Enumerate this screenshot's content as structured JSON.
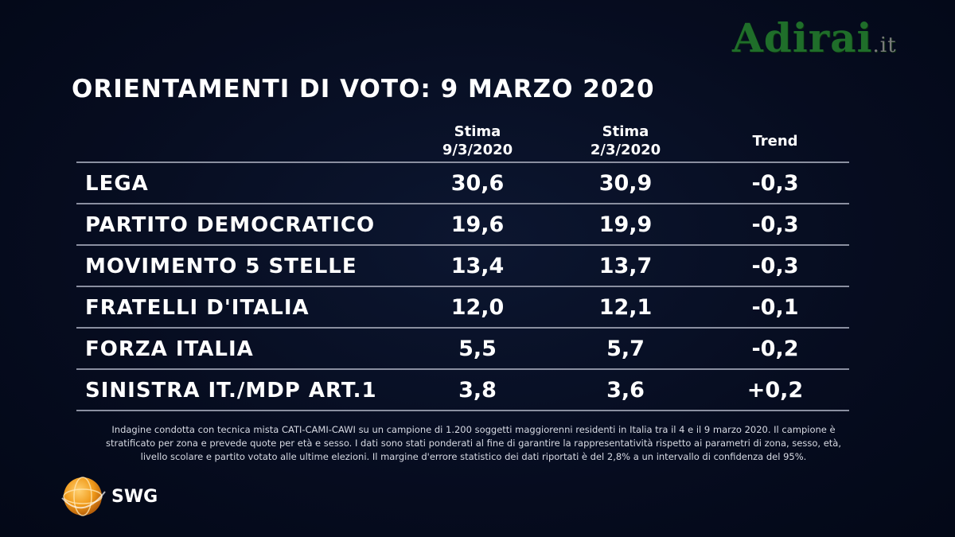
{
  "watermark": {
    "name": "Adirai",
    "tld": ".it"
  },
  "title": "ORIENTAMENTI DI VOTO: 9 MARZO 2020",
  "columns": {
    "c1": {
      "line1": "Stima",
      "line2": "9/3/2020"
    },
    "c2": {
      "line1": "Stima",
      "line2": "2/3/2020"
    },
    "c3": {
      "line1": "Trend"
    }
  },
  "rows": [
    {
      "party": "LEGA",
      "v1": "30,6",
      "v2": "30,9",
      "trend": "-0,3"
    },
    {
      "party": "PARTITO DEMOCRATICO",
      "v1": "19,6",
      "v2": "19,9",
      "trend": "-0,3"
    },
    {
      "party": "MOVIMENTO 5 STELLE",
      "v1": "13,4",
      "v2": "13,7",
      "trend": "-0,3"
    },
    {
      "party": "FRATELLI D'ITALIA",
      "v1": "12,0",
      "v2": "12,1",
      "trend": "-0,1"
    },
    {
      "party": "FORZA ITALIA",
      "v1": "5,5",
      "v2": "5,7",
      "trend": "-0,2"
    },
    {
      "party": "SINISTRA IT./MDP ART.1",
      "v1": "3,8",
      "v2": "3,6",
      "trend": "+0,2"
    }
  ],
  "footnote": [
    "Indagine condotta con tecnica mista CATI-CAMI-CAWI su un campione di 1.200 soggetti maggiorenni residenti in Italia tra il 4 e il 9 marzo 2020. Il campione è",
    "stratificato per zona e prevede quote per età e sesso. I dati sono stati ponderati al fine di garantire la rappresentatività rispetto ai parametri di zona, sesso, età,",
    "livello scolare e partito votato alle ultime elezioni. Il margine d'errore statistico dei dati riportati è del 2,8% a un intervallo di confidenza del 95%."
  ],
  "logo": {
    "text": "SWG",
    "icon": "swg-globe-icon",
    "color": "#f0a020"
  }
}
